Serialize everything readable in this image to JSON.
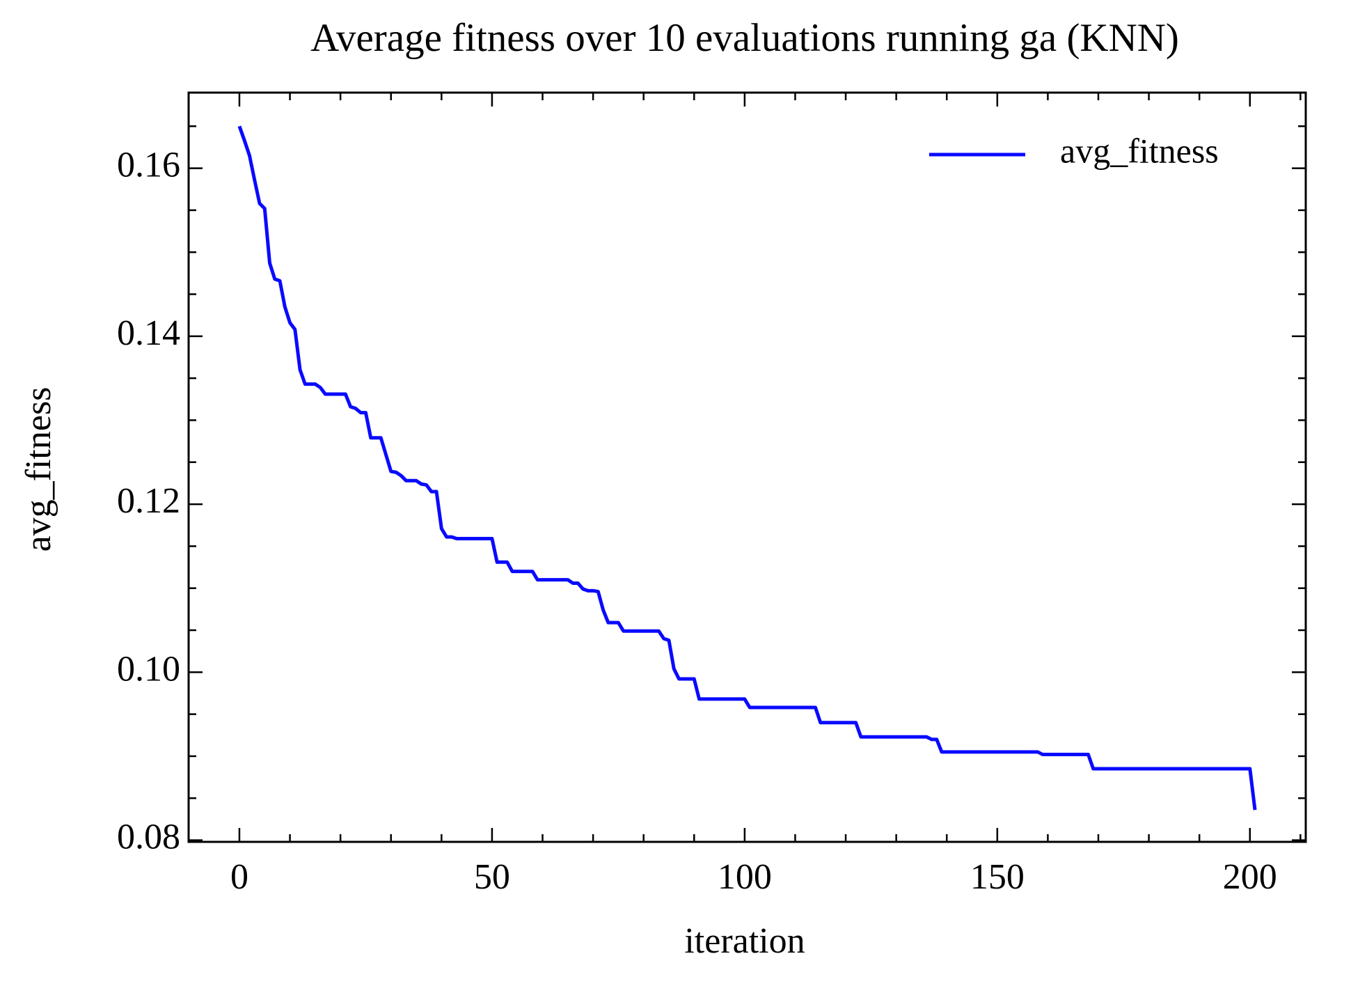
{
  "chart_data": {
    "type": "line",
    "title": "Average fitness over 10 evaluations running ga (KNN)",
    "xlabel": "iteration",
    "ylabel": "avg_fitness",
    "x": [
      0,
      1,
      2,
      3,
      4,
      5,
      6,
      7,
      8,
      9,
      10,
      11,
      12,
      13,
      14,
      15,
      16,
      17,
      18,
      19,
      20,
      21,
      22,
      23,
      24,
      25,
      26,
      27,
      28,
      29,
      30,
      31,
      32,
      33,
      34,
      35,
      36,
      37,
      38,
      39,
      40,
      41,
      42,
      43,
      44,
      45,
      46,
      47,
      48,
      49,
      50,
      51,
      52,
      53,
      54,
      55,
      56,
      57,
      58,
      59,
      60,
      61,
      62,
      63,
      64,
      65,
      66,
      67,
      68,
      69,
      70,
      71,
      72,
      73,
      74,
      75,
      76,
      77,
      78,
      79,
      80,
      81,
      82,
      83,
      84,
      85,
      86,
      87,
      88,
      89,
      90,
      91,
      92,
      93,
      94,
      95,
      96,
      97,
      98,
      99,
      100,
      101,
      102,
      103,
      104,
      105,
      106,
      107,
      108,
      109,
      110,
      111,
      112,
      113,
      114,
      115,
      116,
      117,
      118,
      119,
      120,
      121,
      122,
      123,
      124,
      125,
      126,
      127,
      128,
      129,
      130,
      131,
      132,
      133,
      134,
      135,
      136,
      137,
      138,
      139,
      140,
      141,
      142,
      143,
      144,
      145,
      146,
      147,
      148,
      149,
      150,
      151,
      152,
      153,
      154,
      155,
      156,
      157,
      158,
      159,
      160,
      161,
      162,
      163,
      164,
      165,
      166,
      167,
      168,
      169,
      170,
      171,
      172,
      173,
      174,
      175,
      176,
      177,
      178,
      179,
      180,
      181,
      182,
      183,
      184,
      185,
      186,
      187,
      188,
      189,
      190,
      191,
      192,
      193,
      194,
      195,
      196,
      197,
      198,
      199,
      200,
      201
    ],
    "series": [
      {
        "name": "avg_fitness",
        "color": "#0a0aff",
        "values": [
          0.165,
          0.1633,
          0.1615,
          0.1586,
          0.1558,
          0.1552,
          0.1487,
          0.1468,
          0.1466,
          0.1435,
          0.1416,
          0.1408,
          0.136,
          0.1343,
          0.1343,
          0.1343,
          0.1339,
          0.1331,
          0.1331,
          0.1331,
          0.1331,
          0.1331,
          0.1316,
          0.1314,
          0.1309,
          0.1309,
          0.1279,
          0.1279,
          0.1279,
          0.1259,
          0.1239,
          0.1238,
          0.1234,
          0.1228,
          0.1228,
          0.1228,
          0.1224,
          0.1223,
          0.1215,
          0.1215,
          0.1171,
          0.1161,
          0.1161,
          0.1159,
          0.1159,
          0.1159,
          0.1159,
          0.1159,
          0.1159,
          0.1159,
          0.1159,
          0.1131,
          0.1131,
          0.1131,
          0.112,
          0.112,
          0.112,
          0.112,
          0.112,
          0.111,
          0.111,
          0.111,
          0.111,
          0.111,
          0.111,
          0.111,
          0.1106,
          0.1106,
          0.1099,
          0.1097,
          0.1097,
          0.1096,
          0.1074,
          0.1059,
          0.1059,
          0.1059,
          0.1049,
          0.1049,
          0.1049,
          0.1049,
          0.1049,
          0.1049,
          0.1049,
          0.1049,
          0.104,
          0.1038,
          0.1004,
          0.0992,
          0.0992,
          0.0992,
          0.0992,
          0.0968,
          0.0968,
          0.0968,
          0.0968,
          0.0968,
          0.0968,
          0.0968,
          0.0968,
          0.0968,
          0.0968,
          0.0958,
          0.0958,
          0.0958,
          0.0958,
          0.0958,
          0.0958,
          0.0958,
          0.0958,
          0.0958,
          0.0958,
          0.0958,
          0.0958,
          0.0958,
          0.0958,
          0.094,
          0.094,
          0.094,
          0.094,
          0.094,
          0.094,
          0.094,
          0.094,
          0.0923,
          0.0923,
          0.0923,
          0.0923,
          0.0923,
          0.0923,
          0.0923,
          0.0923,
          0.0923,
          0.0923,
          0.0923,
          0.0923,
          0.0923,
          0.0923,
          0.092,
          0.092,
          0.0905,
          0.0905,
          0.0905,
          0.0905,
          0.0905,
          0.0905,
          0.0905,
          0.0905,
          0.0905,
          0.0905,
          0.0905,
          0.0905,
          0.0905,
          0.0905,
          0.0905,
          0.0905,
          0.0905,
          0.0905,
          0.0905,
          0.0905,
          0.0902,
          0.0902,
          0.0902,
          0.0902,
          0.0902,
          0.0902,
          0.0902,
          0.0902,
          0.0902,
          0.0902,
          0.0885,
          0.0885,
          0.0885,
          0.0885,
          0.0885,
          0.0885,
          0.0885,
          0.0885,
          0.0885,
          0.0885,
          0.0885,
          0.0885,
          0.0885,
          0.0885,
          0.0885,
          0.0885,
          0.0885,
          0.0885,
          0.0885,
          0.0885,
          0.0885,
          0.0885,
          0.0885,
          0.0885,
          0.0885,
          0.0885,
          0.0885,
          0.0885,
          0.0885,
          0.0885,
          0.0885,
          0.0885,
          0.0836
        ]
      }
    ],
    "xlim": [
      -10.05,
      211.05
    ],
    "ylim": [
      0.0798,
      0.169
    ],
    "xticks": [
      0,
      50,
      100,
      150,
      200
    ],
    "yticks": [
      0.08,
      {
        "value": 0.1,
        "label": "0.10"
      },
      0.12,
      0.14,
      0.16
    ],
    "x_minor_ticks": [
      10,
      20,
      30,
      40,
      60,
      70,
      80,
      90,
      110,
      120,
      130,
      140,
      160,
      170,
      180,
      190,
      210
    ],
    "y_minor_ticks": [
      0.085,
      0.09,
      0.095,
      0.105,
      0.11,
      0.115,
      0.125,
      0.13,
      0.135,
      0.145,
      0.15,
      0.155,
      0.165
    ],
    "legend": "upper right",
    "grid": false
  }
}
